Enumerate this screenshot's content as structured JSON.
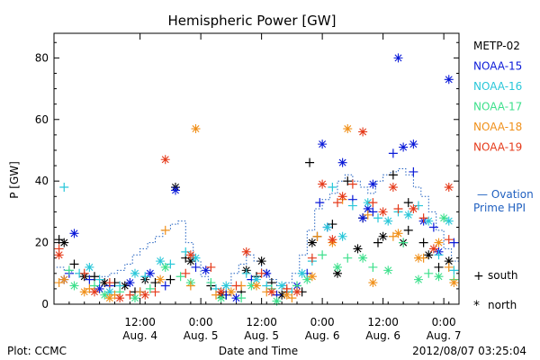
{
  "chart_data": {
    "type": "scatter",
    "title": "Hemispheric Power [GW]",
    "ylabel": "P [GW]",
    "xlabel": "Date and Time",
    "xlim": [
      "2012-08-03T19:00",
      "2012-08-07T03:00"
    ],
    "ylim": [
      0,
      88
    ],
    "yticks": [
      0,
      20,
      40,
      60,
      80
    ],
    "xticks": [
      {
        "t": "2012-08-04T12:00",
        "line1": "12:00",
        "line2": "Aug. 4"
      },
      {
        "t": "2012-08-05T00:00",
        "line1": "0:00",
        "line2": "Aug. 5"
      },
      {
        "t": "2012-08-05T12:00",
        "line1": "12:00",
        "line2": "Aug. 5"
      },
      {
        "t": "2012-08-06T00:00",
        "line1": "0:00",
        "line2": "Aug. 6"
      },
      {
        "t": "2012-08-06T12:00",
        "line1": "12:00",
        "line2": "Aug. 6"
      },
      {
        "t": "2012-08-07T00:00",
        "line1": "0:00",
        "line2": "Aug. 7"
      }
    ],
    "footer_left": "Plot: CCMC",
    "footer_right": "2012/08/07 03:25:04",
    "legend_markers": {
      "south_symbol": "+",
      "south_label": "south",
      "north_symbol": "*",
      "north_label": "north"
    },
    "ovation_label_line1": "— Ovation",
    "ovation_label_line2": "Prime HPI",
    "ovation_color": "#2060c0",
    "ovation": {
      "start": "2012-08-03T19:30",
      "step_hours": 1.5,
      "values": [
        12,
        11,
        10,
        9,
        9,
        8,
        9,
        10,
        11,
        13,
        16,
        18,
        20,
        22,
        24,
        26,
        27,
        20,
        14,
        9,
        6,
        4,
        6,
        10,
        13,
        16,
        14,
        11,
        8,
        6,
        7,
        10,
        16,
        24,
        31,
        34,
        36,
        40,
        42,
        40,
        38,
        36,
        40,
        42,
        43,
        44,
        42,
        38,
        35,
        30,
        24,
        18,
        14
      ]
    },
    "series": [
      {
        "name": "METP-02",
        "color": "#000000",
        "south": [
          [
            "2012-08-03T20:00",
            21
          ],
          [
            "2012-08-03T23:00",
            13
          ],
          [
            "2012-08-04T03:00",
            9
          ],
          [
            "2012-08-04T07:00",
            7
          ],
          [
            "2012-08-04T11:00",
            4
          ],
          [
            "2012-08-04T15:00",
            7
          ],
          [
            "2012-08-04T18:00",
            8
          ],
          [
            "2012-08-04T21:00",
            15
          ],
          [
            "2012-08-05T02:00",
            6
          ],
          [
            "2012-08-05T05:00",
            3
          ],
          [
            "2012-08-05T08:00",
            4
          ],
          [
            "2012-08-05T11:00",
            9
          ],
          [
            "2012-08-05T14:00",
            7
          ],
          [
            "2012-08-05T17:00",
            4
          ],
          [
            "2012-08-05T20:00",
            4
          ],
          [
            "2012-08-05T23:00",
            22
          ],
          [
            "2012-08-06T02:00",
            26
          ],
          [
            "2012-08-06T05:00",
            40
          ],
          [
            "2012-08-06T08:00",
            28
          ],
          [
            "2012-08-06T11:00",
            20
          ],
          [
            "2012-08-06T14:00",
            42
          ],
          [
            "2012-08-06T17:00",
            24
          ],
          [
            "2012-08-06T20:00",
            20
          ],
          [
            "2012-08-06T23:00",
            12
          ],
          [
            "2012-08-06T17:00",
            33
          ],
          [
            "2012-08-05T21:30",
            46
          ]
        ],
        "north": [
          [
            "2012-08-03T21:00",
            20
          ],
          [
            "2012-08-04T01:00",
            9
          ],
          [
            "2012-08-04T05:00",
            7
          ],
          [
            "2012-08-04T09:00",
            6
          ],
          [
            "2012-08-04T13:00",
            8
          ],
          [
            "2012-08-04T19:00",
            38
          ],
          [
            "2012-08-04T22:00",
            14
          ],
          [
            "2012-08-05T04:00",
            3
          ],
          [
            "2012-08-05T09:00",
            11
          ],
          [
            "2012-08-05T12:00",
            14
          ],
          [
            "2012-08-05T16:00",
            3
          ],
          [
            "2012-08-05T22:00",
            20
          ],
          [
            "2012-08-06T03:00",
            10
          ],
          [
            "2012-08-06T07:00",
            18
          ],
          [
            "2012-08-06T12:00",
            22
          ],
          [
            "2012-08-06T16:00",
            20
          ],
          [
            "2012-08-06T21:00",
            16
          ],
          [
            "2012-08-07T01:00",
            14
          ]
        ]
      },
      {
        "name": "NOAA-15",
        "color": "#0a1ad8",
        "south": [
          [
            "2012-08-03T22:00",
            10
          ],
          [
            "2012-08-04T02:00",
            8
          ],
          [
            "2012-08-04T06:00",
            6
          ],
          [
            "2012-08-04T12:00",
            4
          ],
          [
            "2012-08-04T17:00",
            6
          ],
          [
            "2012-08-04T23:00",
            12
          ],
          [
            "2012-08-05T05:00",
            3
          ],
          [
            "2012-08-05T10:00",
            8
          ],
          [
            "2012-08-05T15:00",
            3
          ],
          [
            "2012-08-05T21:00",
            10
          ],
          [
            "2012-08-06T01:00",
            25
          ],
          [
            "2012-08-06T06:00",
            34
          ],
          [
            "2012-08-06T10:00",
            30
          ],
          [
            "2012-08-06T14:00",
            49
          ],
          [
            "2012-08-06T18:00",
            43
          ],
          [
            "2012-08-06T22:00",
            25
          ],
          [
            "2012-08-07T02:00",
            20
          ],
          [
            "2012-08-05T23:30",
            33
          ]
        ],
        "north": [
          [
            "2012-08-03T21:00",
            8
          ],
          [
            "2012-08-03T23:00",
            23
          ],
          [
            "2012-08-04T04:00",
            5
          ],
          [
            "2012-08-04T10:00",
            7
          ],
          [
            "2012-08-04T14:00",
            10
          ],
          [
            "2012-08-04T19:00",
            37
          ],
          [
            "2012-08-05T01:00",
            11
          ],
          [
            "2012-08-05T07:00",
            2
          ],
          [
            "2012-08-05T13:00",
            10
          ],
          [
            "2012-08-05T19:00",
            6
          ],
          [
            "2012-08-06T00:00",
            52
          ],
          [
            "2012-08-06T04:00",
            46
          ],
          [
            "2012-08-06T08:00",
            28
          ],
          [
            "2012-08-06T10:00",
            39
          ],
          [
            "2012-08-06T15:00",
            80
          ],
          [
            "2012-08-06T16:00",
            51
          ],
          [
            "2012-08-06T18:00",
            52
          ],
          [
            "2012-08-06T20:00",
            27
          ],
          [
            "2012-08-06T23:00",
            17
          ],
          [
            "2012-08-07T01:00",
            73
          ],
          [
            "2012-08-06T09:00",
            31
          ]
        ]
      },
      {
        "name": "NOAA-16",
        "color": "#29c7d9",
        "south": [
          [
            "2012-08-03T21:00",
            38
          ],
          [
            "2012-08-04T00:00",
            10
          ],
          [
            "2012-08-04T04:00",
            8
          ],
          [
            "2012-08-04T08:00",
            6
          ],
          [
            "2012-08-04T13:00",
            9
          ],
          [
            "2012-08-04T18:00",
            13
          ],
          [
            "2012-08-04T21:00",
            17
          ],
          [
            "2012-08-05T03:00",
            5
          ],
          [
            "2012-08-05T09:00",
            10
          ],
          [
            "2012-08-05T13:00",
            6
          ],
          [
            "2012-08-05T18:00",
            4
          ],
          [
            "2012-08-05T22:00",
            14
          ],
          [
            "2012-08-06T02:00",
            38
          ],
          [
            "2012-08-06T06:00",
            32
          ],
          [
            "2012-08-06T11:00",
            28
          ],
          [
            "2012-08-06T15:00",
            30
          ],
          [
            "2012-08-06T19:00",
            32
          ],
          [
            "2012-08-06T23:00",
            16
          ],
          [
            "2012-08-07T02:00",
            11
          ]
        ],
        "north": [
          [
            "2012-08-04T02:00",
            12
          ],
          [
            "2012-08-04T06:00",
            4
          ],
          [
            "2012-08-04T11:00",
            10
          ],
          [
            "2012-08-04T16:00",
            14
          ],
          [
            "2012-08-04T23:00",
            15
          ],
          [
            "2012-08-05T05:00",
            6
          ],
          [
            "2012-08-05T11:00",
            8
          ],
          [
            "2012-08-05T16:00",
            6
          ],
          [
            "2012-08-05T20:00",
            10
          ],
          [
            "2012-08-06T01:00",
            25
          ],
          [
            "2012-08-06T04:00",
            22
          ],
          [
            "2012-08-06T09:00",
            33
          ],
          [
            "2012-08-06T13:00",
            27
          ],
          [
            "2012-08-06T17:00",
            29
          ],
          [
            "2012-08-06T21:00",
            27
          ],
          [
            "2012-08-07T01:00",
            27
          ]
        ]
      },
      {
        "name": "NOAA-17",
        "color": "#3de08c",
        "south": [
          [
            "2012-08-03T22:00",
            11
          ],
          [
            "2012-08-04T03:00",
            6
          ],
          [
            "2012-08-04T08:00",
            4
          ],
          [
            "2012-08-04T14:00",
            5
          ],
          [
            "2012-08-04T20:00",
            9
          ],
          [
            "2012-08-05T02:00",
            7
          ],
          [
            "2012-08-05T08:00",
            2
          ],
          [
            "2012-08-05T14:00",
            5
          ],
          [
            "2012-08-05T19:00",
            6
          ],
          [
            "2012-08-06T00:00",
            16
          ],
          [
            "2012-08-06T05:00",
            15
          ],
          [
            "2012-08-06T10:00",
            12
          ],
          [
            "2012-08-06T16:00",
            20
          ],
          [
            "2012-08-06T21:00",
            10
          ],
          [
            "2012-08-07T02:00",
            8
          ]
        ],
        "north": [
          [
            "2012-08-03T23:00",
            6
          ],
          [
            "2012-08-04T05:00",
            3
          ],
          [
            "2012-08-04T11:00",
            2
          ],
          [
            "2012-08-04T17:00",
            12
          ],
          [
            "2012-08-04T22:00",
            7
          ],
          [
            "2012-08-05T04:00",
            2
          ],
          [
            "2012-08-05T10:00",
            6
          ],
          [
            "2012-08-05T15:00",
            1
          ],
          [
            "2012-08-05T21:00",
            8
          ],
          [
            "2012-08-06T03:00",
            12
          ],
          [
            "2012-08-06T08:00",
            15
          ],
          [
            "2012-08-06T13:00",
            11
          ],
          [
            "2012-08-06T19:00",
            8
          ],
          [
            "2012-08-06T23:00",
            9
          ],
          [
            "2012-08-07T00:00",
            28
          ]
        ]
      },
      {
        "name": "NOAA-18",
        "color": "#f0901a",
        "south": [
          [
            "2012-08-03T20:00",
            7
          ],
          [
            "2012-08-04T02:00",
            5
          ],
          [
            "2012-08-04T07:00",
            3
          ],
          [
            "2012-08-04T12:00",
            4
          ],
          [
            "2012-08-04T17:00",
            24
          ],
          [
            "2012-08-04T22:00",
            6
          ],
          [
            "2012-08-05T03:00",
            3
          ],
          [
            "2012-08-05T08:00",
            6
          ],
          [
            "2012-08-05T13:00",
            4
          ],
          [
            "2012-08-05T18:00",
            2
          ],
          [
            "2012-08-05T23:00",
            22
          ],
          [
            "2012-08-06T04:00",
            34
          ],
          [
            "2012-08-06T09:00",
            29
          ],
          [
            "2012-08-06T14:00",
            22
          ],
          [
            "2012-08-06T20:00",
            15
          ],
          [
            "2012-08-07T01:00",
            12
          ]
        ],
        "north": [
          [
            "2012-08-03T21:00",
            8
          ],
          [
            "2012-08-04T01:00",
            4
          ],
          [
            "2012-08-04T06:00",
            2
          ],
          [
            "2012-08-04T16:00",
            8
          ],
          [
            "2012-08-04T23:00",
            57
          ],
          [
            "2012-08-05T06:00",
            4
          ],
          [
            "2012-08-05T11:00",
            6
          ],
          [
            "2012-08-05T17:00",
            3
          ],
          [
            "2012-08-05T22:00",
            9
          ],
          [
            "2012-08-06T02:00",
            20
          ],
          [
            "2012-08-06T05:00",
            57
          ],
          [
            "2012-08-06T10:00",
            7
          ],
          [
            "2012-08-06T15:00",
            23
          ],
          [
            "2012-08-06T19:00",
            15
          ],
          [
            "2012-08-06T23:00",
            20
          ],
          [
            "2012-08-07T02:00",
            7
          ]
        ]
      },
      {
        "name": "NOAA-19",
        "color": "#e53a1a",
        "south": [
          [
            "2012-08-03T20:00",
            18
          ],
          [
            "2012-08-04T01:00",
            10
          ],
          [
            "2012-08-04T06:00",
            7
          ],
          [
            "2012-08-04T10:00",
            3
          ],
          [
            "2012-08-04T15:00",
            4
          ],
          [
            "2012-08-04T21:00",
            10
          ],
          [
            "2012-08-05T02:00",
            12
          ],
          [
            "2012-08-05T07:00",
            6
          ],
          [
            "2012-08-05T12:00",
            10
          ],
          [
            "2012-08-05T17:00",
            5
          ],
          [
            "2012-08-05T22:00",
            15
          ],
          [
            "2012-08-06T03:00",
            33
          ],
          [
            "2012-08-06T06:00",
            39
          ],
          [
            "2012-08-06T10:00",
            33
          ],
          [
            "2012-08-06T15:00",
            31
          ],
          [
            "2012-08-06T20:00",
            28
          ],
          [
            "2012-08-07T01:00",
            21
          ]
        ],
        "north": [
          [
            "2012-08-03T20:00",
            16
          ],
          [
            "2012-08-04T03:00",
            4
          ],
          [
            "2012-08-04T08:00",
            2
          ],
          [
            "2012-08-04T13:00",
            3
          ],
          [
            "2012-08-04T17:00",
            47
          ],
          [
            "2012-08-04T22:00",
            16
          ],
          [
            "2012-08-05T04:00",
            4
          ],
          [
            "2012-08-05T09:00",
            17
          ],
          [
            "2012-08-05T14:00",
            4
          ],
          [
            "2012-08-05T19:00",
            4
          ],
          [
            "2012-08-06T00:00",
            39
          ],
          [
            "2012-08-06T02:00",
            21
          ],
          [
            "2012-08-06T04:00",
            35
          ],
          [
            "2012-08-06T08:00",
            56
          ],
          [
            "2012-08-06T12:00",
            30
          ],
          [
            "2012-08-06T14:00",
            38
          ],
          [
            "2012-08-06T18:00",
            31
          ],
          [
            "2012-08-06T22:00",
            18
          ],
          [
            "2012-08-07T01:00",
            38
          ]
        ]
      }
    ]
  }
}
